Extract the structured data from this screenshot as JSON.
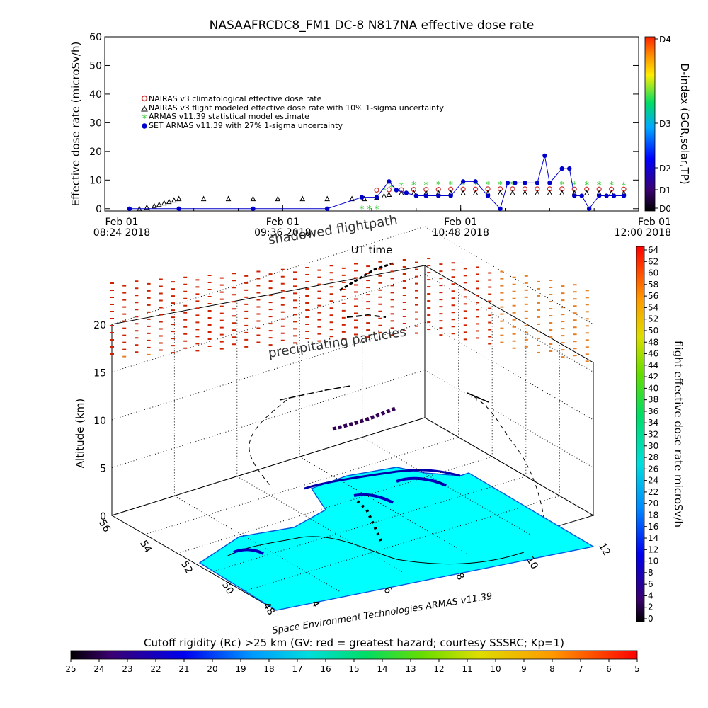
{
  "chart_data": [
    {
      "type": "line",
      "title": "NASAAFRCDC8_FM1 DC-8   N817NA effective dose rate",
      "ylabel": "Effective dose rate (microSv/h)",
      "xlabel": "UT time",
      "ylim": [
        0,
        60
      ],
      "yticks": [
        0,
        10,
        20,
        30,
        40,
        50,
        60
      ],
      "xticks": [
        {
          "line1": "Feb 01",
          "line2": "08:24 2018"
        },
        {
          "line1": "Feb 01",
          "line2": "09:36 2018"
        },
        {
          "line1": "Feb 01",
          "line2": "10:48 2018"
        },
        {
          "line1": "Feb 01",
          "line2": "12:00 2018"
        }
      ],
      "x_range_minutes_after_0824": [
        0,
        216
      ],
      "legend_placement": "upper-left",
      "series": [
        {
          "name": "NAIRAS v3 climatological effective dose rate",
          "marker": "o",
          "color": "#cc3333",
          "x": [
            110,
            115,
            120,
            125,
            130,
            135,
            140,
            145,
            150,
            155,
            160,
            165,
            170,
            175,
            180,
            185,
            190,
            195,
            200,
            205,
            210
          ],
          "y": [
            6.5,
            6.6,
            6.6,
            6.7,
            6.7,
            6.7,
            6.8,
            6.8,
            6.8,
            6.9,
            6.9,
            6.9,
            6.9,
            6.9,
            6.9,
            6.9,
            6.8,
            6.8,
            6.8,
            6.8,
            6.8
          ]
        },
        {
          "name": "NAIRAS v3 flight modeled effective dose rate with 10% 1-sigma uncertainty",
          "marker": "triangle",
          "color": "#000000",
          "x": [
            14,
            17,
            20,
            22,
            24,
            26,
            28,
            30,
            40,
            50,
            60,
            70,
            80,
            90,
            100,
            105,
            110,
            113,
            115,
            120,
            125,
            130,
            135,
            140,
            145,
            150,
            155,
            160,
            165,
            170,
            175,
            180,
            185,
            190,
            195,
            200,
            205,
            210
          ],
          "y": [
            0,
            0.5,
            1,
            1.5,
            2,
            2.5,
            3,
            3.5,
            3.5,
            3.5,
            3.5,
            3.5,
            3.5,
            3.5,
            3.5,
            3.5,
            4,
            4.5,
            5,
            5.5,
            5.5,
            5.5,
            5.5,
            5.5,
            5.5,
            5.5,
            5.5,
            5.5,
            5.5,
            5.5,
            5.5,
            5.5,
            5.5,
            5.5,
            5.5,
            5.5,
            5.5,
            5.5
          ]
        },
        {
          "name": "ARMAS v11.39 statistical model estimate",
          "marker": "*",
          "color": "#33cc33",
          "x": [
            104,
            107,
            110,
            113,
            116,
            120,
            125,
            130,
            135,
            140,
            145,
            150,
            155,
            160,
            165,
            170,
            175,
            180,
            185,
            190,
            195,
            200,
            205,
            210
          ],
          "y": [
            0,
            0,
            0,
            6.5,
            7.5,
            8,
            8.3,
            8.4,
            8.5,
            8.5,
            8.5,
            8.5,
            8.5,
            8.5,
            8.5,
            8.5,
            8.5,
            8.5,
            8.5,
            8.4,
            8.4,
            8.3,
            8.3,
            8.2
          ]
        },
        {
          "name": "SET ARMAS v11.39 with 27% 1-sigma uncertainty",
          "marker": "filled-circle",
          "color": "#0000cc",
          "x": [
            10,
            30,
            60,
            90,
            104,
            110,
            115,
            118,
            122,
            126,
            130,
            135,
            140,
            145,
            150,
            155,
            160,
            163,
            166,
            170,
            175,
            178,
            180,
            185,
            188,
            190,
            193,
            196,
            200,
            203,
            206,
            210
          ],
          "y": [
            0,
            0,
            0,
            0,
            4,
            4,
            9.5,
            6.5,
            5.5,
            4.5,
            4.5,
            4.5,
            4.5,
            9.5,
            9.5,
            4.5,
            0,
            9,
            9,
            9,
            9,
            18.5,
            9,
            14,
            14,
            4.5,
            4.5,
            0,
            4.5,
            4.5,
            4.5,
            4.5
          ]
        }
      ],
      "right_axis": {
        "label": "D-index (GCR,solar,TP)",
        "ticks": [
          "D0",
          "D1",
          "D2",
          "D3",
          "D4"
        ]
      }
    },
    {
      "type": "scatter",
      "subtype": "3d-flight-profile",
      "zlabel": "Altitude (km)",
      "zticks": [
        0,
        5,
        10,
        15,
        20
      ],
      "lat_ticks": [
        48,
        50,
        52,
        54,
        56
      ],
      "lon_ticks": [
        4,
        6,
        8,
        10,
        12
      ],
      "annotations": [
        "shadowed flightpath",
        "precipitating particles"
      ],
      "credit": "Space Environment Technologies ARMAS v11.39",
      "colorbar": {
        "label": "flight effective dose rate microSv/h",
        "ticks": [
          0,
          2,
          4,
          6,
          8,
          10,
          12,
          14,
          16,
          18,
          20,
          22,
          24,
          26,
          28,
          30,
          32,
          34,
          36,
          38,
          40,
          42,
          44,
          46,
          48,
          50,
          52,
          54,
          56,
          58,
          60,
          62,
          64
        ]
      }
    }
  ],
  "bottom_colorbar": {
    "title": "Cutoff rigidity (Rc) >25 km (GV: red = greatest hazard; courtesy SSSRC; Kp=1)",
    "ticks": [
      25,
      24,
      23,
      22,
      21,
      20,
      19,
      18,
      17,
      16,
      15,
      14,
      13,
      12,
      11,
      10,
      9,
      8,
      7,
      6,
      5
    ]
  },
  "colors": {
    "map_fill": "#00ffff",
    "flight_track": "#000000",
    "high_alt_orange": "#e67e22",
    "high_alt_red": "#cc2200"
  }
}
